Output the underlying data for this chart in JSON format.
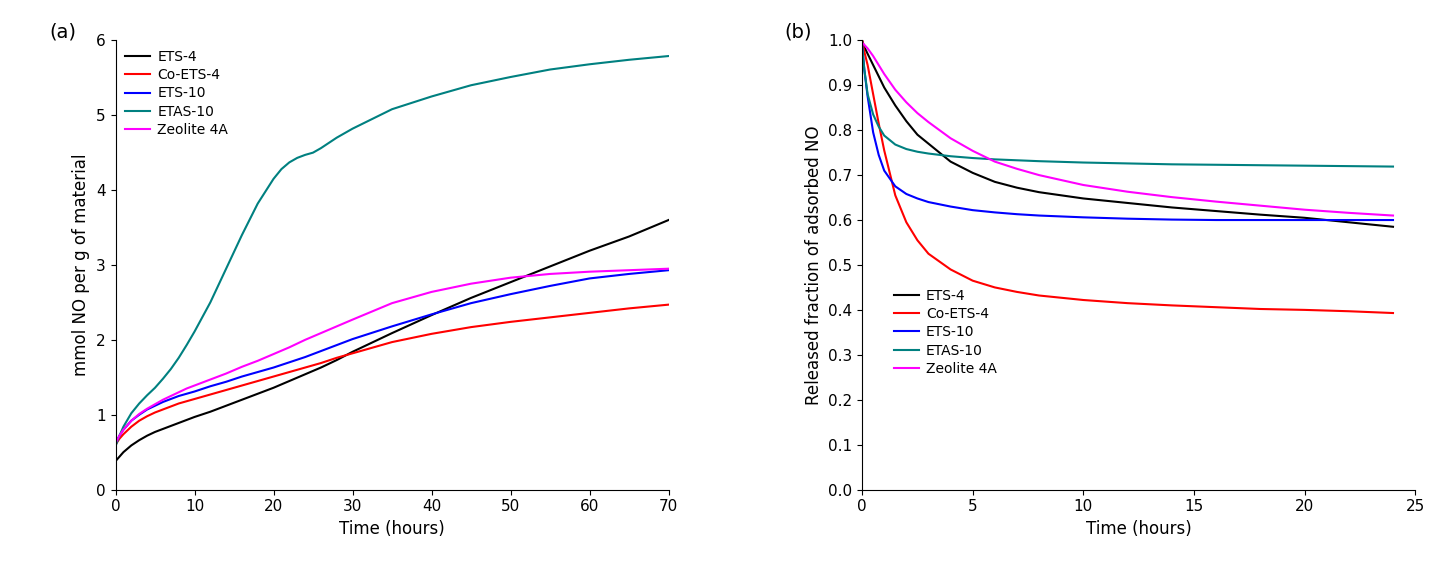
{
  "panel_a": {
    "title_label": "(a)",
    "xlabel": "Time (hours)",
    "ylabel": "mmol NO per g of material",
    "xlim": [
      0,
      70
    ],
    "ylim": [
      0,
      6
    ],
    "yticks": [
      0,
      1,
      2,
      3,
      4,
      5,
      6
    ],
    "xticks": [
      0,
      10,
      20,
      30,
      40,
      50,
      60,
      70
    ],
    "series": {
      "ETS-4": {
        "color": "#000000",
        "x": [
          0,
          0.5,
          1,
          2,
          3,
          4,
          5,
          6,
          7,
          8,
          9,
          10,
          12,
          14,
          16,
          18,
          20,
          22,
          24,
          26,
          28,
          30,
          35,
          40,
          45,
          50,
          55,
          60,
          65,
          70
        ],
        "y": [
          0.38,
          0.44,
          0.5,
          0.59,
          0.66,
          0.72,
          0.77,
          0.81,
          0.85,
          0.89,
          0.93,
          0.97,
          1.04,
          1.12,
          1.2,
          1.28,
          1.36,
          1.45,
          1.54,
          1.63,
          1.73,
          1.84,
          2.09,
          2.33,
          2.56,
          2.77,
          2.98,
          3.19,
          3.38,
          3.6
        ]
      },
      "Co-ETS-4": {
        "color": "#ff0000",
        "x": [
          0,
          0.5,
          1,
          2,
          3,
          4,
          5,
          6,
          7,
          8,
          9,
          10,
          12,
          14,
          16,
          18,
          20,
          22,
          24,
          26,
          28,
          30,
          35,
          40,
          45,
          50,
          55,
          60,
          65,
          70
        ],
        "y": [
          0.6,
          0.68,
          0.74,
          0.84,
          0.92,
          0.98,
          1.03,
          1.07,
          1.11,
          1.15,
          1.18,
          1.21,
          1.27,
          1.33,
          1.39,
          1.45,
          1.51,
          1.57,
          1.63,
          1.69,
          1.76,
          1.82,
          1.97,
          2.08,
          2.17,
          2.24,
          2.3,
          2.36,
          2.42,
          2.47
        ]
      },
      "ETS-10": {
        "color": "#0000ff",
        "x": [
          0,
          0.5,
          1,
          2,
          3,
          4,
          5,
          6,
          7,
          8,
          9,
          10,
          12,
          14,
          16,
          18,
          20,
          22,
          24,
          26,
          28,
          30,
          35,
          40,
          45,
          50,
          55,
          60,
          65,
          70
        ],
        "y": [
          0.62,
          0.72,
          0.8,
          0.92,
          1.0,
          1.07,
          1.12,
          1.17,
          1.21,
          1.25,
          1.28,
          1.31,
          1.38,
          1.44,
          1.51,
          1.57,
          1.63,
          1.7,
          1.77,
          1.85,
          1.93,
          2.01,
          2.18,
          2.34,
          2.49,
          2.61,
          2.72,
          2.82,
          2.88,
          2.93
        ]
      },
      "ETAS-10": {
        "color": "#008080",
        "x": [
          0,
          0.5,
          1,
          2,
          3,
          4,
          5,
          6,
          7,
          8,
          9,
          10,
          12,
          14,
          16,
          18,
          20,
          21,
          22,
          23,
          24,
          25,
          26,
          27,
          28,
          30,
          35,
          40,
          45,
          50,
          55,
          60,
          65,
          70
        ],
        "y": [
          0.58,
          0.72,
          0.84,
          1.02,
          1.15,
          1.26,
          1.36,
          1.48,
          1.61,
          1.76,
          1.93,
          2.11,
          2.5,
          2.95,
          3.4,
          3.82,
          4.15,
          4.28,
          4.37,
          4.43,
          4.47,
          4.5,
          4.56,
          4.63,
          4.7,
          4.82,
          5.08,
          5.25,
          5.4,
          5.51,
          5.61,
          5.68,
          5.74,
          5.79
        ]
      },
      "Zeolite 4A": {
        "color": "#ff00ff",
        "x": [
          0,
          0.5,
          1,
          2,
          3,
          4,
          5,
          6,
          7,
          8,
          9,
          10,
          12,
          14,
          16,
          18,
          20,
          22,
          24,
          26,
          28,
          30,
          35,
          40,
          45,
          50,
          55,
          60,
          65,
          70
        ],
        "y": [
          0.62,
          0.72,
          0.8,
          0.92,
          1.01,
          1.08,
          1.14,
          1.2,
          1.25,
          1.3,
          1.35,
          1.39,
          1.47,
          1.55,
          1.64,
          1.72,
          1.81,
          1.9,
          2.0,
          2.09,
          2.18,
          2.27,
          2.49,
          2.64,
          2.75,
          2.83,
          2.88,
          2.91,
          2.93,
          2.95
        ]
      }
    }
  },
  "panel_b": {
    "title_label": "(b)",
    "xlabel": "Time (hours)",
    "ylabel": "Released fraction of adsorbed NO",
    "xlim": [
      0,
      25
    ],
    "ylim": [
      0.0,
      1.0
    ],
    "yticks": [
      0.0,
      0.1,
      0.2,
      0.3,
      0.4,
      0.5,
      0.6,
      0.7,
      0.8,
      0.9,
      1.0
    ],
    "xticks": [
      0,
      5,
      10,
      15,
      20,
      25
    ],
    "series": {
      "ETS-4": {
        "color": "#000000",
        "x": [
          0,
          0.1,
          0.25,
          0.5,
          0.75,
          1.0,
          1.5,
          2.0,
          2.5,
          3.0,
          4.0,
          5.0,
          6.0,
          7.0,
          8.0,
          10.0,
          12.0,
          14.0,
          16.0,
          18.0,
          20.0,
          22.0,
          24.0
        ],
        "y": [
          1.0,
          0.985,
          0.97,
          0.945,
          0.92,
          0.895,
          0.855,
          0.82,
          0.79,
          0.77,
          0.73,
          0.705,
          0.685,
          0.672,
          0.662,
          0.648,
          0.638,
          0.628,
          0.62,
          0.612,
          0.605,
          0.595,
          0.585
        ]
      },
      "Co-ETS-4": {
        "color": "#ff0000",
        "x": [
          0,
          0.1,
          0.25,
          0.5,
          0.75,
          1.0,
          1.5,
          2.0,
          2.5,
          3.0,
          4.0,
          5.0,
          6.0,
          7.0,
          8.0,
          10.0,
          12.0,
          14.0,
          16.0,
          18.0,
          20.0,
          22.0,
          24.0
        ],
        "y": [
          1.0,
          0.975,
          0.945,
          0.88,
          0.815,
          0.755,
          0.655,
          0.595,
          0.555,
          0.525,
          0.49,
          0.465,
          0.45,
          0.44,
          0.432,
          0.422,
          0.415,
          0.41,
          0.406,
          0.402,
          0.4,
          0.397,
          0.393
        ]
      },
      "ETS-10": {
        "color": "#0000ff",
        "x": [
          0,
          0.1,
          0.25,
          0.5,
          0.75,
          1.0,
          1.5,
          2.0,
          2.5,
          3.0,
          4.0,
          5.0,
          6.0,
          7.0,
          8.0,
          10.0,
          12.0,
          14.0,
          16.0,
          18.0,
          20.0,
          22.0,
          24.0
        ],
        "y": [
          0.99,
          0.935,
          0.875,
          0.795,
          0.745,
          0.71,
          0.675,
          0.658,
          0.648,
          0.64,
          0.63,
          0.622,
          0.617,
          0.613,
          0.61,
          0.606,
          0.603,
          0.601,
          0.6,
          0.6,
          0.6,
          0.6,
          0.6
        ]
      },
      "ETAS-10": {
        "color": "#008080",
        "x": [
          0,
          0.1,
          0.25,
          0.5,
          0.75,
          1.0,
          1.5,
          2.0,
          2.5,
          3.0,
          4.0,
          5.0,
          6.0,
          7.0,
          8.0,
          10.0,
          12.0,
          14.0,
          16.0,
          18.0,
          20.0,
          22.0,
          24.0
        ],
        "y": [
          0.99,
          0.935,
          0.88,
          0.835,
          0.808,
          0.788,
          0.768,
          0.758,
          0.752,
          0.748,
          0.742,
          0.738,
          0.735,
          0.733,
          0.731,
          0.728,
          0.726,
          0.724,
          0.723,
          0.722,
          0.721,
          0.72,
          0.719
        ]
      },
      "Zeolite 4A": {
        "color": "#ff00ff",
        "x": [
          0,
          0.1,
          0.25,
          0.5,
          0.75,
          1.0,
          1.5,
          2.0,
          2.5,
          3.0,
          4.0,
          5.0,
          6.0,
          7.0,
          8.0,
          10.0,
          12.0,
          14.0,
          16.0,
          18.0,
          20.0,
          22.0,
          24.0
        ],
        "y": [
          0.995,
          0.99,
          0.982,
          0.965,
          0.945,
          0.925,
          0.89,
          0.862,
          0.838,
          0.818,
          0.782,
          0.754,
          0.73,
          0.714,
          0.7,
          0.678,
          0.663,
          0.651,
          0.641,
          0.632,
          0.623,
          0.616,
          0.61
        ]
      }
    }
  },
  "figure_bg": "#ffffff",
  "axes_bg": "#ffffff",
  "line_width": 1.5,
  "font_size": 11,
  "label_font_size": 12,
  "legend_font_size": 10,
  "figsize": [
    14.44,
    5.76
  ]
}
